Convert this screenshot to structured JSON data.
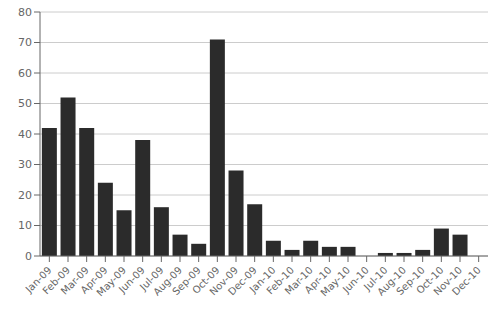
{
  "chart_data": {
    "type": "bar",
    "categories": [
      "Jan-09",
      "Feb-09",
      "Mar-09",
      "Apr-09",
      "May-09",
      "Jun-09",
      "Jul-09",
      "Aug-09",
      "Sep-09",
      "Oct-09",
      "Nov-09",
      "Dec-09",
      "Jan-10",
      "Feb-10",
      "Mar-10",
      "Apr-10",
      "May-10",
      "Jun-10",
      "Jul-10",
      "Aug-10",
      "Sep-10",
      "Oct-10",
      "Nov-10",
      "Dec-10"
    ],
    "values": [
      42,
      52,
      42,
      24,
      15,
      38,
      16,
      7,
      4,
      71,
      28,
      17,
      5,
      2,
      5,
      3,
      3,
      0,
      1,
      1,
      2,
      9,
      7,
      0
    ],
    "color": "#2b2b2b",
    "ylim": [
      0,
      80
    ],
    "yticks": [
      0,
      10,
      20,
      30,
      40,
      50,
      60,
      70,
      80
    ],
    "grid": true
  }
}
